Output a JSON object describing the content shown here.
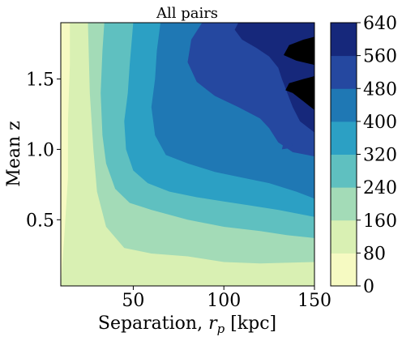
{
  "chart_data": {
    "type": "heatmap",
    "subtype": "filled-contour",
    "title": "All pairs",
    "xlabel": "Separation, ",
    "xlabel_symbol": "r",
    "xlabel_subscript": "p",
    "xlabel_unit": " [kpc]",
    "ylabel": "Mean z",
    "xlim": [
      10,
      150
    ],
    "ylim": [
      0.03,
      1.9
    ],
    "x_ticks": [
      50,
      100,
      150
    ],
    "x_tick_labels": [
      "50",
      "100",
      "150"
    ],
    "y_ticks": [
      0.5,
      1.0,
      1.5
    ],
    "y_tick_labels": [
      "0.5",
      "1.0",
      "1.5"
    ],
    "colormap": "YlGnBu",
    "levels": [
      0,
      80,
      160,
      240,
      320,
      400,
      480,
      560,
      640
    ],
    "level_labels": [
      "0",
      "80",
      "160",
      "240",
      "320",
      "400",
      "480",
      "560",
      "640"
    ],
    "level_colors": [
      "#f6fac2",
      "#d9f0b3",
      "#a3dbb7",
      "#5fc0c0",
      "#2ca0c4",
      "#1f78b4",
      "#2548a0",
      "#16287b"
    ],
    "contour_boundaries": [
      {
        "from_level": 80,
        "points": [
          [
            10,
            0.03
          ],
          [
            12,
            0.4
          ],
          [
            14,
            0.8
          ],
          [
            14,
            1.2
          ],
          [
            15,
            1.6
          ],
          [
            15,
            1.9
          ]
        ]
      },
      {
        "from_level": 160,
        "points": [
          [
            150,
            0.2
          ],
          [
            120,
            0.19
          ],
          [
            100,
            0.2
          ],
          [
            80,
            0.24
          ],
          [
            60,
            0.26
          ],
          [
            45,
            0.3
          ],
          [
            35,
            0.45
          ],
          [
            30,
            0.7
          ],
          [
            28,
            1.0
          ],
          [
            26,
            1.4
          ],
          [
            25,
            1.9
          ]
        ]
      },
      {
        "from_level": 240,
        "points": [
          [
            150,
            0.37
          ],
          [
            135,
            0.39
          ],
          [
            120,
            0.42
          ],
          [
            100,
            0.45
          ],
          [
            80,
            0.5
          ],
          [
            60,
            0.57
          ],
          [
            48,
            0.62
          ],
          [
            40,
            0.72
          ],
          [
            35,
            0.9
          ],
          [
            33,
            1.1
          ],
          [
            32,
            1.4
          ],
          [
            33,
            1.7
          ],
          [
            34,
            1.9
          ]
        ]
      },
      {
        "from_level": 320,
        "points": [
          [
            150,
            0.52
          ],
          [
            130,
            0.57
          ],
          [
            115,
            0.6
          ],
          [
            100,
            0.63
          ],
          [
            85,
            0.66
          ],
          [
            70,
            0.7
          ],
          [
            58,
            0.76
          ],
          [
            50,
            0.85
          ],
          [
            46,
            1.0
          ],
          [
            45,
            1.2
          ],
          [
            47,
            1.4
          ],
          [
            48,
            1.6
          ],
          [
            50,
            1.9
          ]
        ]
      },
      {
        "from_level": 400,
        "points": [
          [
            150,
            0.65
          ],
          [
            140,
            0.7
          ],
          [
            125,
            0.76
          ],
          [
            110,
            0.8
          ],
          [
            95,
            0.84
          ],
          [
            80,
            0.9
          ],
          [
            68,
            0.96
          ],
          [
            62,
            1.1
          ],
          [
            60,
            1.3
          ],
          [
            62,
            1.5
          ],
          [
            63,
            1.7
          ],
          [
            65,
            1.9
          ]
        ]
      },
      {
        "from_level": 480,
        "points": [
          [
            150,
            0.95
          ],
          [
            138,
            0.98
          ],
          [
            130,
            1.05
          ],
          [
            125,
            1.15
          ],
          [
            120,
            1.22
          ],
          [
            108,
            1.3
          ],
          [
            95,
            1.38
          ],
          [
            85,
            1.48
          ],
          [
            80,
            1.62
          ],
          [
            82,
            1.78
          ],
          [
            88,
            1.9
          ]
        ]
      },
      {
        "from_level": 560,
        "points": [
          [
            150,
            1.12
          ],
          [
            142,
            1.2
          ],
          [
            138,
            1.3
          ],
          [
            135,
            1.4
          ],
          [
            132,
            1.5
          ],
          [
            130,
            1.58
          ],
          [
            125,
            1.66
          ],
          [
            118,
            1.72
          ],
          [
            110,
            1.78
          ],
          [
            106,
            1.85
          ],
          [
            108,
            1.9
          ]
        ]
      },
      {
        "from_level": 640,
        "points": [
          [
            150,
            1.28
          ],
          [
            144,
            1.34
          ],
          [
            138,
            1.4
          ],
          [
            134,
            1.42
          ],
          [
            136,
            1.47
          ],
          [
            144,
            1.5
          ],
          [
            150,
            1.52
          ]
        ]
      }
    ],
    "extra_regions": [
      {
        "level": 640,
        "points": [
          [
            150,
            1.6
          ],
          [
            140,
            1.63
          ],
          [
            133,
            1.67
          ],
          [
            136,
            1.74
          ],
          [
            144,
            1.78
          ],
          [
            150,
            1.8
          ]
        ]
      },
      {
        "level": 480,
        "points": [
          [
            132,
            1.0
          ],
          [
            137,
            1.01
          ],
          [
            138,
            1.04
          ],
          [
            133,
            1.05
          ]
        ]
      }
    ],
    "colorbar_position": "right"
  }
}
